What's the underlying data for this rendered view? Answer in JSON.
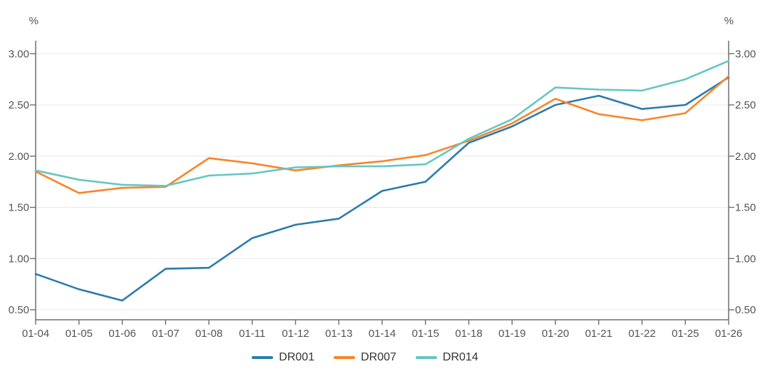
{
  "chart_data": {
    "type": "line",
    "title": "",
    "unit_left": "%",
    "unit_right": "%",
    "x_labels": [
      "01-04",
      "01-05",
      "01-06",
      "01-07",
      "01-08",
      "01-11",
      "01-12",
      "01-13",
      "01-14",
      "01-15",
      "01-18",
      "01-19",
      "01-20",
      "01-21",
      "01-22",
      "01-25",
      "01-26"
    ],
    "y_tick_labels": [
      "0.50",
      "1.00",
      "1.50",
      "2.00",
      "2.50",
      "3.00"
    ],
    "y_tick_values": [
      0.5,
      1.0,
      1.5,
      2.0,
      2.5,
      3.0
    ],
    "ylim": [
      0.4,
      3.13
    ],
    "grid": true,
    "dual_y_axis": true,
    "legend_position": "bottom",
    "series": [
      {
        "name": "DR001",
        "color": "#2b7cab",
        "values": [
          0.85,
          0.7,
          0.59,
          0.9,
          0.91,
          1.2,
          1.33,
          1.39,
          1.66,
          1.75,
          2.13,
          2.29,
          2.5,
          2.59,
          2.46,
          2.5,
          2.77
        ]
      },
      {
        "name": "DR007",
        "color": "#f78529",
        "values": [
          1.85,
          1.64,
          1.69,
          1.7,
          1.98,
          1.93,
          1.86,
          1.91,
          1.95,
          2.01,
          2.15,
          2.32,
          2.56,
          2.41,
          2.35,
          2.42,
          2.78
        ]
      },
      {
        "name": "DR014",
        "color": "#66c6c4",
        "values": [
          1.86,
          1.77,
          1.72,
          1.71,
          1.81,
          1.83,
          1.89,
          1.9,
          1.9,
          1.92,
          2.17,
          2.36,
          2.67,
          2.65,
          2.64,
          2.75,
          2.93
        ]
      }
    ],
    "colors": {
      "grid": "#e8e8e8",
      "axis": "#6e6e6e",
      "tick_label": "#545454",
      "background": "#ffffff"
    }
  }
}
